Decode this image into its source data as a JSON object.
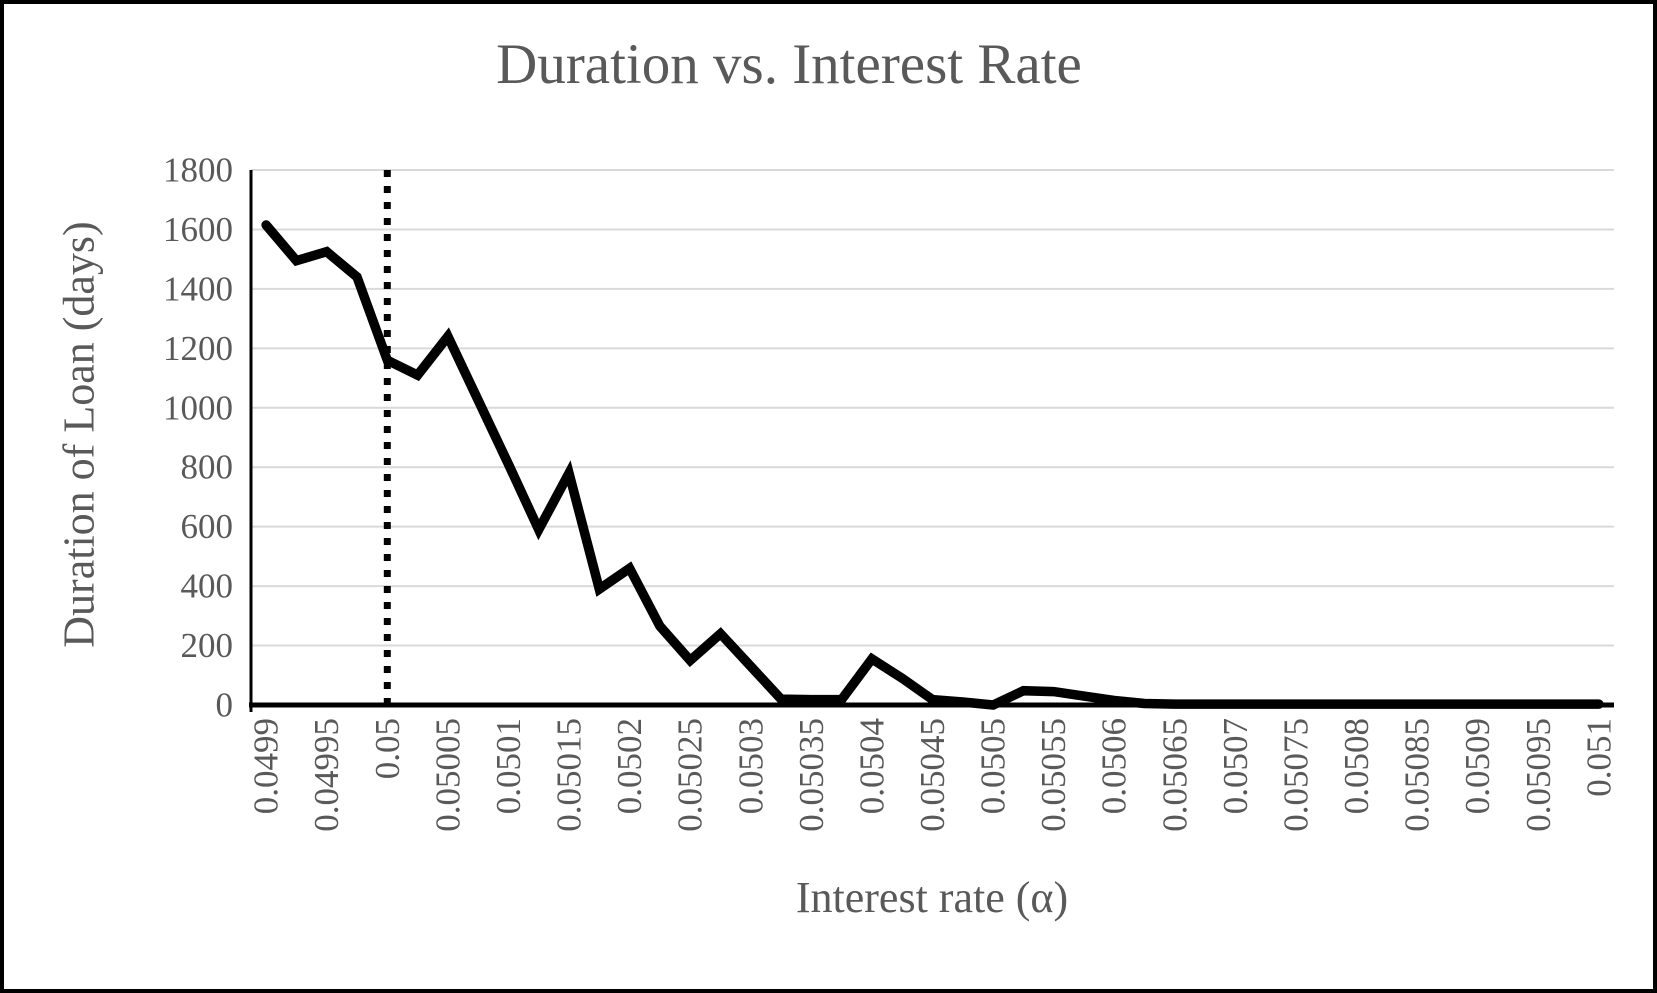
{
  "frame": {
    "background": "#ffffff",
    "border_color": "#000000"
  },
  "chart": {
    "title": "Duration vs. Interest Rate",
    "y_axis_title": "Duration of Loan (days)",
    "x_axis_title": "Interest rate (α)",
    "text_color": "#595959",
    "series_color": "#000000",
    "gridline_color": "#d9d9d9",
    "axis_color": "#000000"
  },
  "chart_data": {
    "type": "line",
    "title": "Duration vs. Interest Rate",
    "xlabel": "Interest rate (α)",
    "ylabel": "Duration of Loan (days)",
    "x": [
      0.0499,
      0.049925,
      0.04995,
      0.049975,
      0.05,
      0.050025,
      0.05005,
      0.050075,
      0.0501,
      0.050125,
      0.05015,
      0.050175,
      0.0502,
      0.050225,
      0.05025,
      0.050275,
      0.0503,
      0.050325,
      0.05035,
      0.050375,
      0.0504,
      0.050425,
      0.05045,
      0.050475,
      0.0505,
      0.050525,
      0.05055,
      0.050575,
      0.0506,
      0.050625,
      0.05065,
      0.050675,
      0.0507,
      0.050725,
      0.05075,
      0.050775,
      0.0508,
      0.050825,
      0.05085,
      0.050875,
      0.0509,
      0.050925,
      0.05095,
      0.050975,
      0.051
    ],
    "y": [
      1615,
      1495,
      1525,
      1440,
      1160,
      1110,
      1240,
      1025,
      810,
      590,
      780,
      390,
      460,
      265,
      150,
      240,
      130,
      20,
      18,
      18,
      155,
      90,
      18,
      10,
      0,
      48,
      45,
      30,
      15,
      5,
      3,
      3,
      3,
      3,
      3,
      3,
      3,
      3,
      3,
      3,
      3,
      3,
      3,
      3,
      3
    ],
    "x_tick_labels": [
      "0.0499",
      "0.04995",
      "0.05",
      "0.05005",
      "0.0501",
      "0.05015",
      "0.0502",
      "0.05025",
      "0.0503",
      "0.05035",
      "0.0504",
      "0.05045",
      "0.0505",
      "0.05055",
      "0.0506",
      "0.05065",
      "0.0507",
      "0.05075",
      "0.0508",
      "0.05085",
      "0.0509",
      "0.05095",
      "0.051"
    ],
    "y_ticks": [
      0,
      200,
      400,
      600,
      800,
      1000,
      1200,
      1400,
      1600,
      1800
    ],
    "ylim": [
      0,
      1800
    ],
    "grid": "horizontal",
    "legend": "none",
    "annotations": [
      {
        "type": "vertical-dotted-line",
        "x": 0.05
      }
    ]
  }
}
